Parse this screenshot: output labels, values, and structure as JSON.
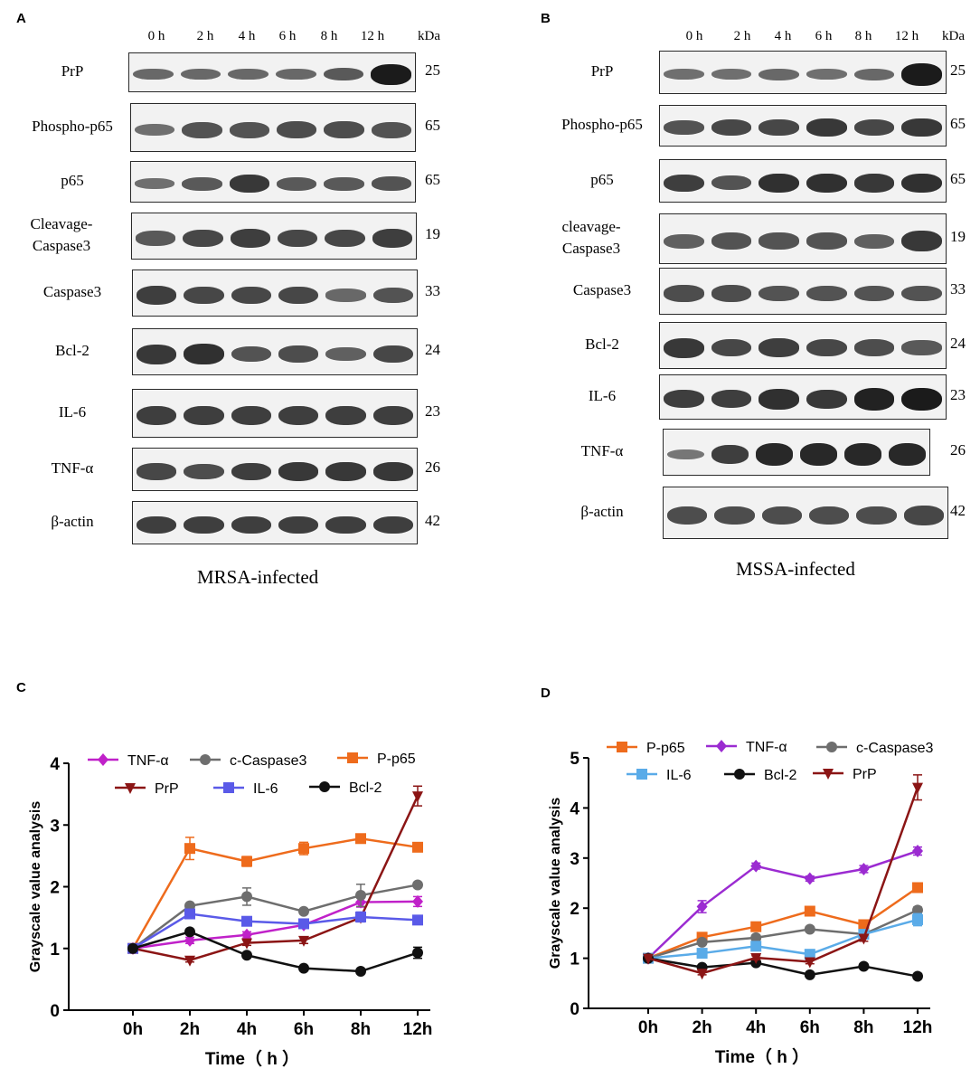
{
  "panels": {
    "a": {
      "letter": "A",
      "caption": "MRSA-infected"
    },
    "b": {
      "letter": "B",
      "caption": "MSSA-infected"
    },
    "c": {
      "letter": "C"
    },
    "d": {
      "letter": "D"
    }
  },
  "blot_a": {
    "lanes": [
      "0 h",
      "2 h",
      "4 h",
      "6 h",
      "8 h",
      "12 h"
    ],
    "kda_header": "kDa",
    "rows": [
      {
        "label": "PrP",
        "kda": "25"
      },
      {
        "label": "Phospho-p65",
        "kda": "65"
      },
      {
        "label": "p65",
        "kda": "65"
      },
      {
        "label": "Cleavage-Caspase3",
        "kda": "19"
      },
      {
        "label": "Caspase3",
        "kda": "33"
      },
      {
        "label": "Bcl-2",
        "kda": "24"
      },
      {
        "label": "IL-6",
        "kda": "23"
      },
      {
        "label": "TNF-α",
        "kda": "26"
      },
      {
        "label": "β-actin",
        "kda": "42"
      }
    ],
    "band_intensity": [
      [
        0.45,
        0.45,
        0.45,
        0.45,
        0.55,
        1.0
      ],
      [
        0.4,
        0.6,
        0.6,
        0.65,
        0.65,
        0.6
      ],
      [
        0.4,
        0.55,
        0.8,
        0.55,
        0.55,
        0.6
      ],
      [
        0.55,
        0.7,
        0.75,
        0.7,
        0.7,
        0.75
      ],
      [
        0.75,
        0.7,
        0.7,
        0.7,
        0.45,
        0.6
      ],
      [
        0.8,
        0.85,
        0.6,
        0.65,
        0.5,
        0.7
      ],
      [
        0.75,
        0.75,
        0.75,
        0.75,
        0.75,
        0.75
      ],
      [
        0.7,
        0.65,
        0.75,
        0.8,
        0.8,
        0.8
      ],
      [
        0.75,
        0.75,
        0.75,
        0.75,
        0.75,
        0.75
      ]
    ]
  },
  "blot_b": {
    "lanes": [
      "0 h",
      "2 h",
      "4 h",
      "6 h",
      "8 h",
      "12 h"
    ],
    "kda_header": "kDa",
    "rows": [
      {
        "label": "PrP",
        "kda": "25"
      },
      {
        "label": "Phospho-p65",
        "kda": "65"
      },
      {
        "label": "p65",
        "kda": "65"
      },
      {
        "label": "cleavage-Caspase3",
        "kda": "19"
      },
      {
        "label": "Caspase3",
        "kda": "33"
      },
      {
        "label": "Bcl-2",
        "kda": "24"
      },
      {
        "label": "IL-6",
        "kda": "23"
      },
      {
        "label": "TNF-α",
        "kda": "26"
      },
      {
        "label": "β-actin",
        "kda": "42"
      }
    ],
    "band_intensity": [
      [
        0.4,
        0.4,
        0.45,
        0.4,
        0.45,
        1.0
      ],
      [
        0.6,
        0.7,
        0.7,
        0.8,
        0.7,
        0.8
      ],
      [
        0.75,
        0.6,
        0.85,
        0.85,
        0.8,
        0.85
      ],
      [
        0.5,
        0.6,
        0.6,
        0.6,
        0.5,
        0.8
      ],
      [
        0.65,
        0.65,
        0.6,
        0.6,
        0.6,
        0.6
      ],
      [
        0.8,
        0.7,
        0.75,
        0.7,
        0.65,
        0.55
      ],
      [
        0.75,
        0.75,
        0.85,
        0.8,
        0.95,
        1.0
      ],
      [
        0.35,
        0.75,
        0.9,
        0.9,
        0.9,
        0.9
      ],
      [
        0.65,
        0.65,
        0.65,
        0.65,
        0.65,
        0.7
      ]
    ]
  },
  "chart_data": [
    {
      "type": "line",
      "panel": "C",
      "title": "",
      "xlabel": "Time（  h  ）",
      "ylabel": "Grayscale value analysis",
      "categories": [
        "0h",
        "2h",
        "4h",
        "6h",
        "8h",
        "12h"
      ],
      "ylim": [
        0,
        4
      ],
      "yticks": [
        "0",
        "1",
        "2",
        "3",
        "4"
      ],
      "legend_placement": "top",
      "series": [
        {
          "name": "TNF-α",
          "color": "#c021c9",
          "marker": "diamond",
          "values": [
            1.0,
            1.13,
            1.22,
            1.38,
            1.75,
            1.76
          ],
          "errors": [
            0,
            0.05,
            0.05,
            0.05,
            0.08,
            0.08
          ]
        },
        {
          "name": "c-Caspase3",
          "color": "#6e6e6e",
          "marker": "circle",
          "values": [
            1.0,
            1.69,
            1.84,
            1.6,
            1.86,
            2.03
          ],
          "errors": [
            0,
            0.04,
            0.14,
            0.04,
            0.18,
            0.04
          ]
        },
        {
          "name": "P-p65",
          "color": "#ee6b1c",
          "marker": "square",
          "values": [
            1.0,
            2.62,
            2.41,
            2.62,
            2.78,
            2.64
          ],
          "errors": [
            0,
            0.18,
            0.08,
            0.1,
            0.05,
            0.05
          ]
        },
        {
          "name": "PrP",
          "color": "#8b1515",
          "marker": "triangle-down",
          "values": [
            1.0,
            0.81,
            1.09,
            1.13,
            1.5,
            3.47
          ],
          "errors": [
            0,
            0.03,
            0.04,
            0.05,
            0.05,
            0.16
          ]
        },
        {
          "name": "IL-6",
          "color": "#5a5ae8",
          "marker": "square",
          "values": [
            1.0,
            1.56,
            1.44,
            1.4,
            1.51,
            1.46
          ],
          "errors": [
            0,
            0.05,
            0.04,
            0.05,
            0.08,
            0.07
          ]
        },
        {
          "name": "Bcl-2",
          "color": "#111111",
          "marker": "circle",
          "values": [
            1.0,
            1.27,
            0.89,
            0.68,
            0.63,
            0.93
          ],
          "errors": [
            0,
            0.03,
            0.04,
            0.03,
            0.02,
            0.09
          ]
        }
      ]
    },
    {
      "type": "line",
      "panel": "D",
      "title": "",
      "xlabel": "Time（  h  ）",
      "ylabel": "Grayscale value analysis",
      "categories": [
        "0h",
        "2h",
        "4h",
        "6h",
        "8h",
        "12h"
      ],
      "ylim": [
        0,
        5
      ],
      "yticks": [
        "0",
        "1",
        "2",
        "3",
        "4",
        "5"
      ],
      "legend_placement": "top",
      "series": [
        {
          "name": "P-p65",
          "color": "#ee6b1c",
          "marker": "square",
          "values": [
            1.0,
            1.42,
            1.63,
            1.94,
            1.67,
            2.41
          ],
          "errors": [
            0,
            0.05,
            0.05,
            0.05,
            0.05,
            0.06
          ]
        },
        {
          "name": "TNF-α",
          "color": "#9b2bd1",
          "marker": "diamond",
          "values": [
            1.0,
            2.03,
            2.84,
            2.59,
            2.78,
            3.14
          ],
          "errors": [
            0,
            0.12,
            0.06,
            0.05,
            0.07,
            0.08
          ]
        },
        {
          "name": "c-Caspase3",
          "color": "#6e6e6e",
          "marker": "circle",
          "values": [
            1.0,
            1.32,
            1.41,
            1.58,
            1.48,
            1.96
          ],
          "errors": [
            0,
            0.05,
            0.05,
            0.05,
            0.05,
            0.06
          ]
        },
        {
          "name": "IL-6",
          "color": "#5aabe8",
          "marker": "square",
          "values": [
            1.0,
            1.1,
            1.24,
            1.08,
            1.48,
            1.77
          ],
          "errors": [
            0,
            0.05,
            0.05,
            0.05,
            0.05,
            0.12
          ]
        },
        {
          "name": "Bcl-2",
          "color": "#111111",
          "marker": "circle",
          "values": [
            1.0,
            0.82,
            0.91,
            0.67,
            0.84,
            0.64
          ],
          "errors": [
            0,
            0.03,
            0.03,
            0.03,
            0.03,
            0.03
          ]
        },
        {
          "name": "PrP",
          "color": "#8b1515",
          "marker": "triangle-down",
          "values": [
            1.0,
            0.7,
            1.01,
            0.93,
            1.4,
            4.41
          ],
          "errors": [
            0,
            0.03,
            0.04,
            0.04,
            0.06,
            0.25
          ]
        }
      ]
    }
  ]
}
